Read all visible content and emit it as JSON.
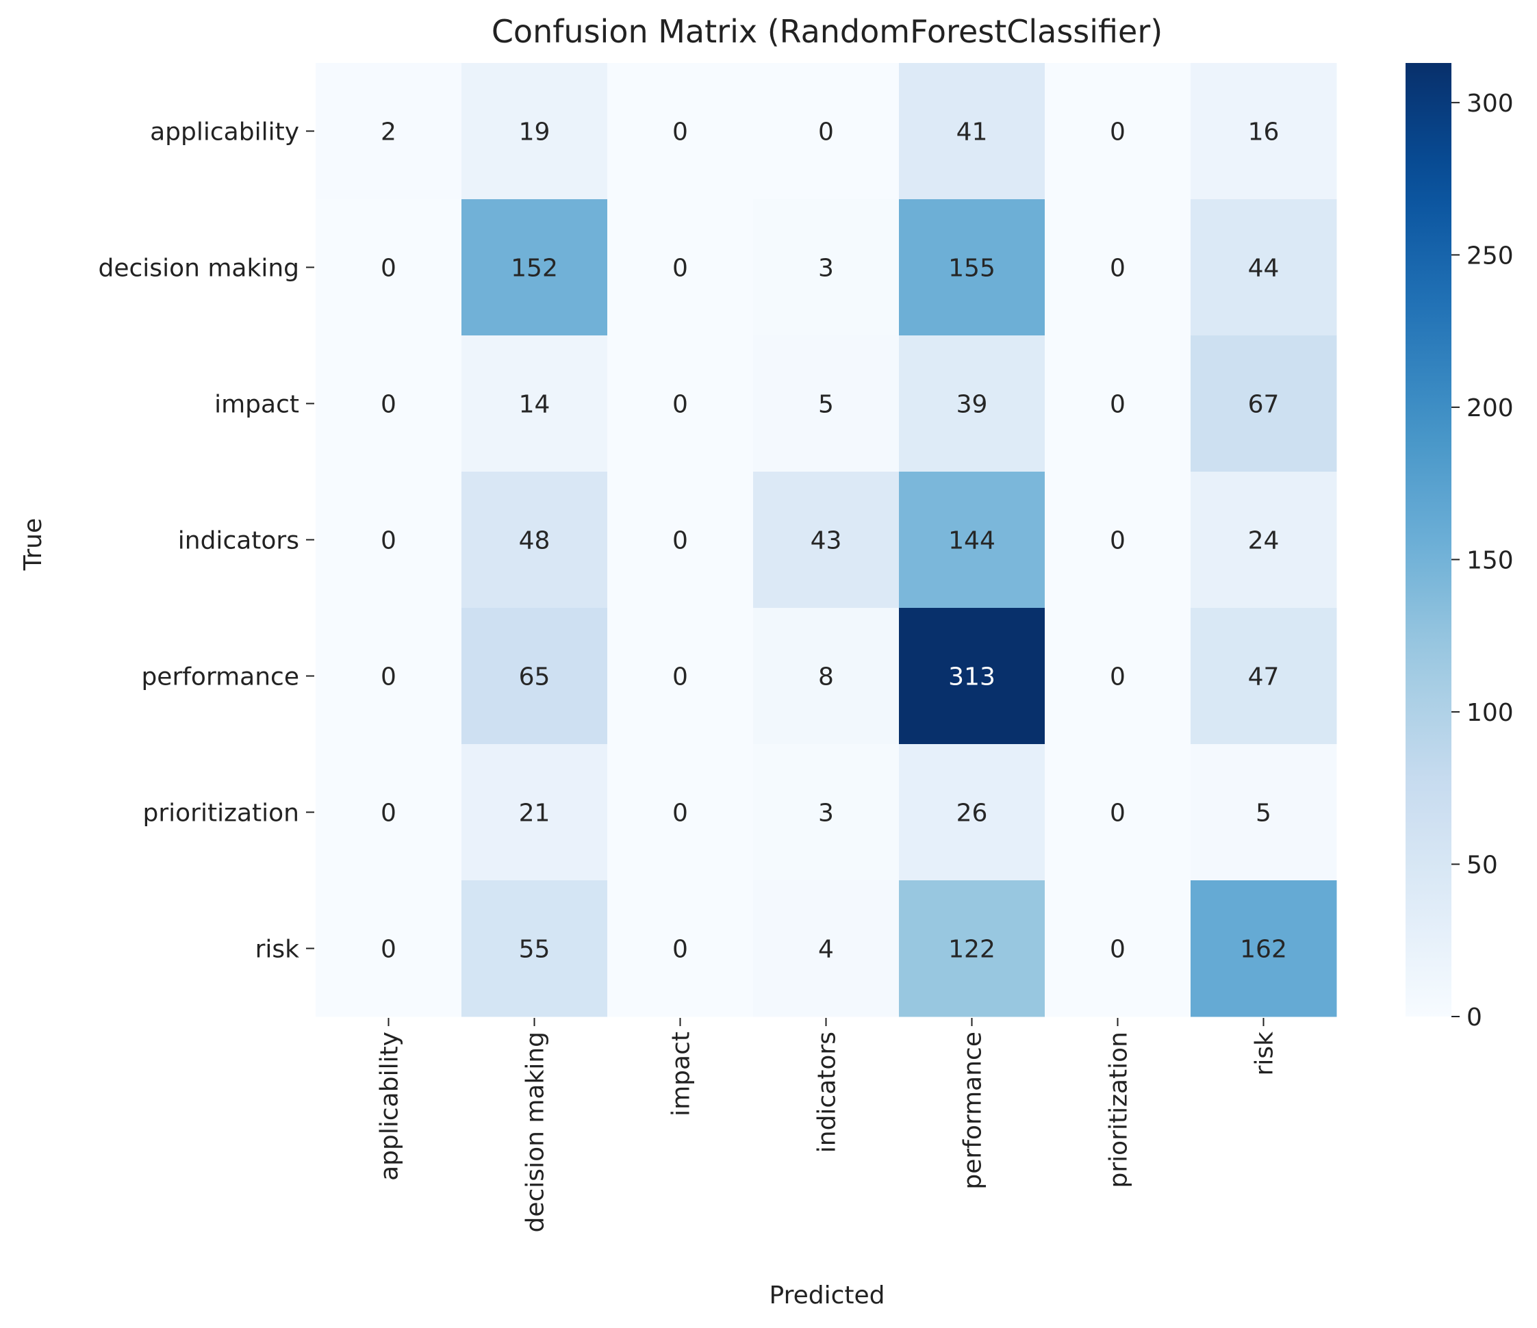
{
  "chart_data": {
    "type": "heatmap",
    "title": "Confusion Matrix (RandomForestClassifier)",
    "xlabel": "Predicted",
    "ylabel": "True",
    "x_categories": [
      "applicability",
      "decision making",
      "impact",
      "indicators",
      "performance",
      "prioritization",
      "risk"
    ],
    "y_categories": [
      "applicability",
      "decision making",
      "impact",
      "indicators",
      "performance",
      "prioritization",
      "risk"
    ],
    "values": [
      [
        2,
        19,
        0,
        0,
        41,
        0,
        16
      ],
      [
        0,
        152,
        0,
        3,
        155,
        0,
        44
      ],
      [
        0,
        14,
        0,
        5,
        39,
        0,
        67
      ],
      [
        0,
        48,
        0,
        43,
        144,
        0,
        24
      ],
      [
        0,
        65,
        0,
        8,
        313,
        0,
        47
      ],
      [
        0,
        21,
        0,
        3,
        26,
        0,
        5
      ],
      [
        0,
        55,
        0,
        4,
        122,
        0,
        162
      ]
    ],
    "colorbar": {
      "colormap": "Blues",
      "range": [
        0,
        313
      ],
      "ticks": [
        0,
        50,
        100,
        150,
        200,
        250,
        300
      ]
    }
  }
}
